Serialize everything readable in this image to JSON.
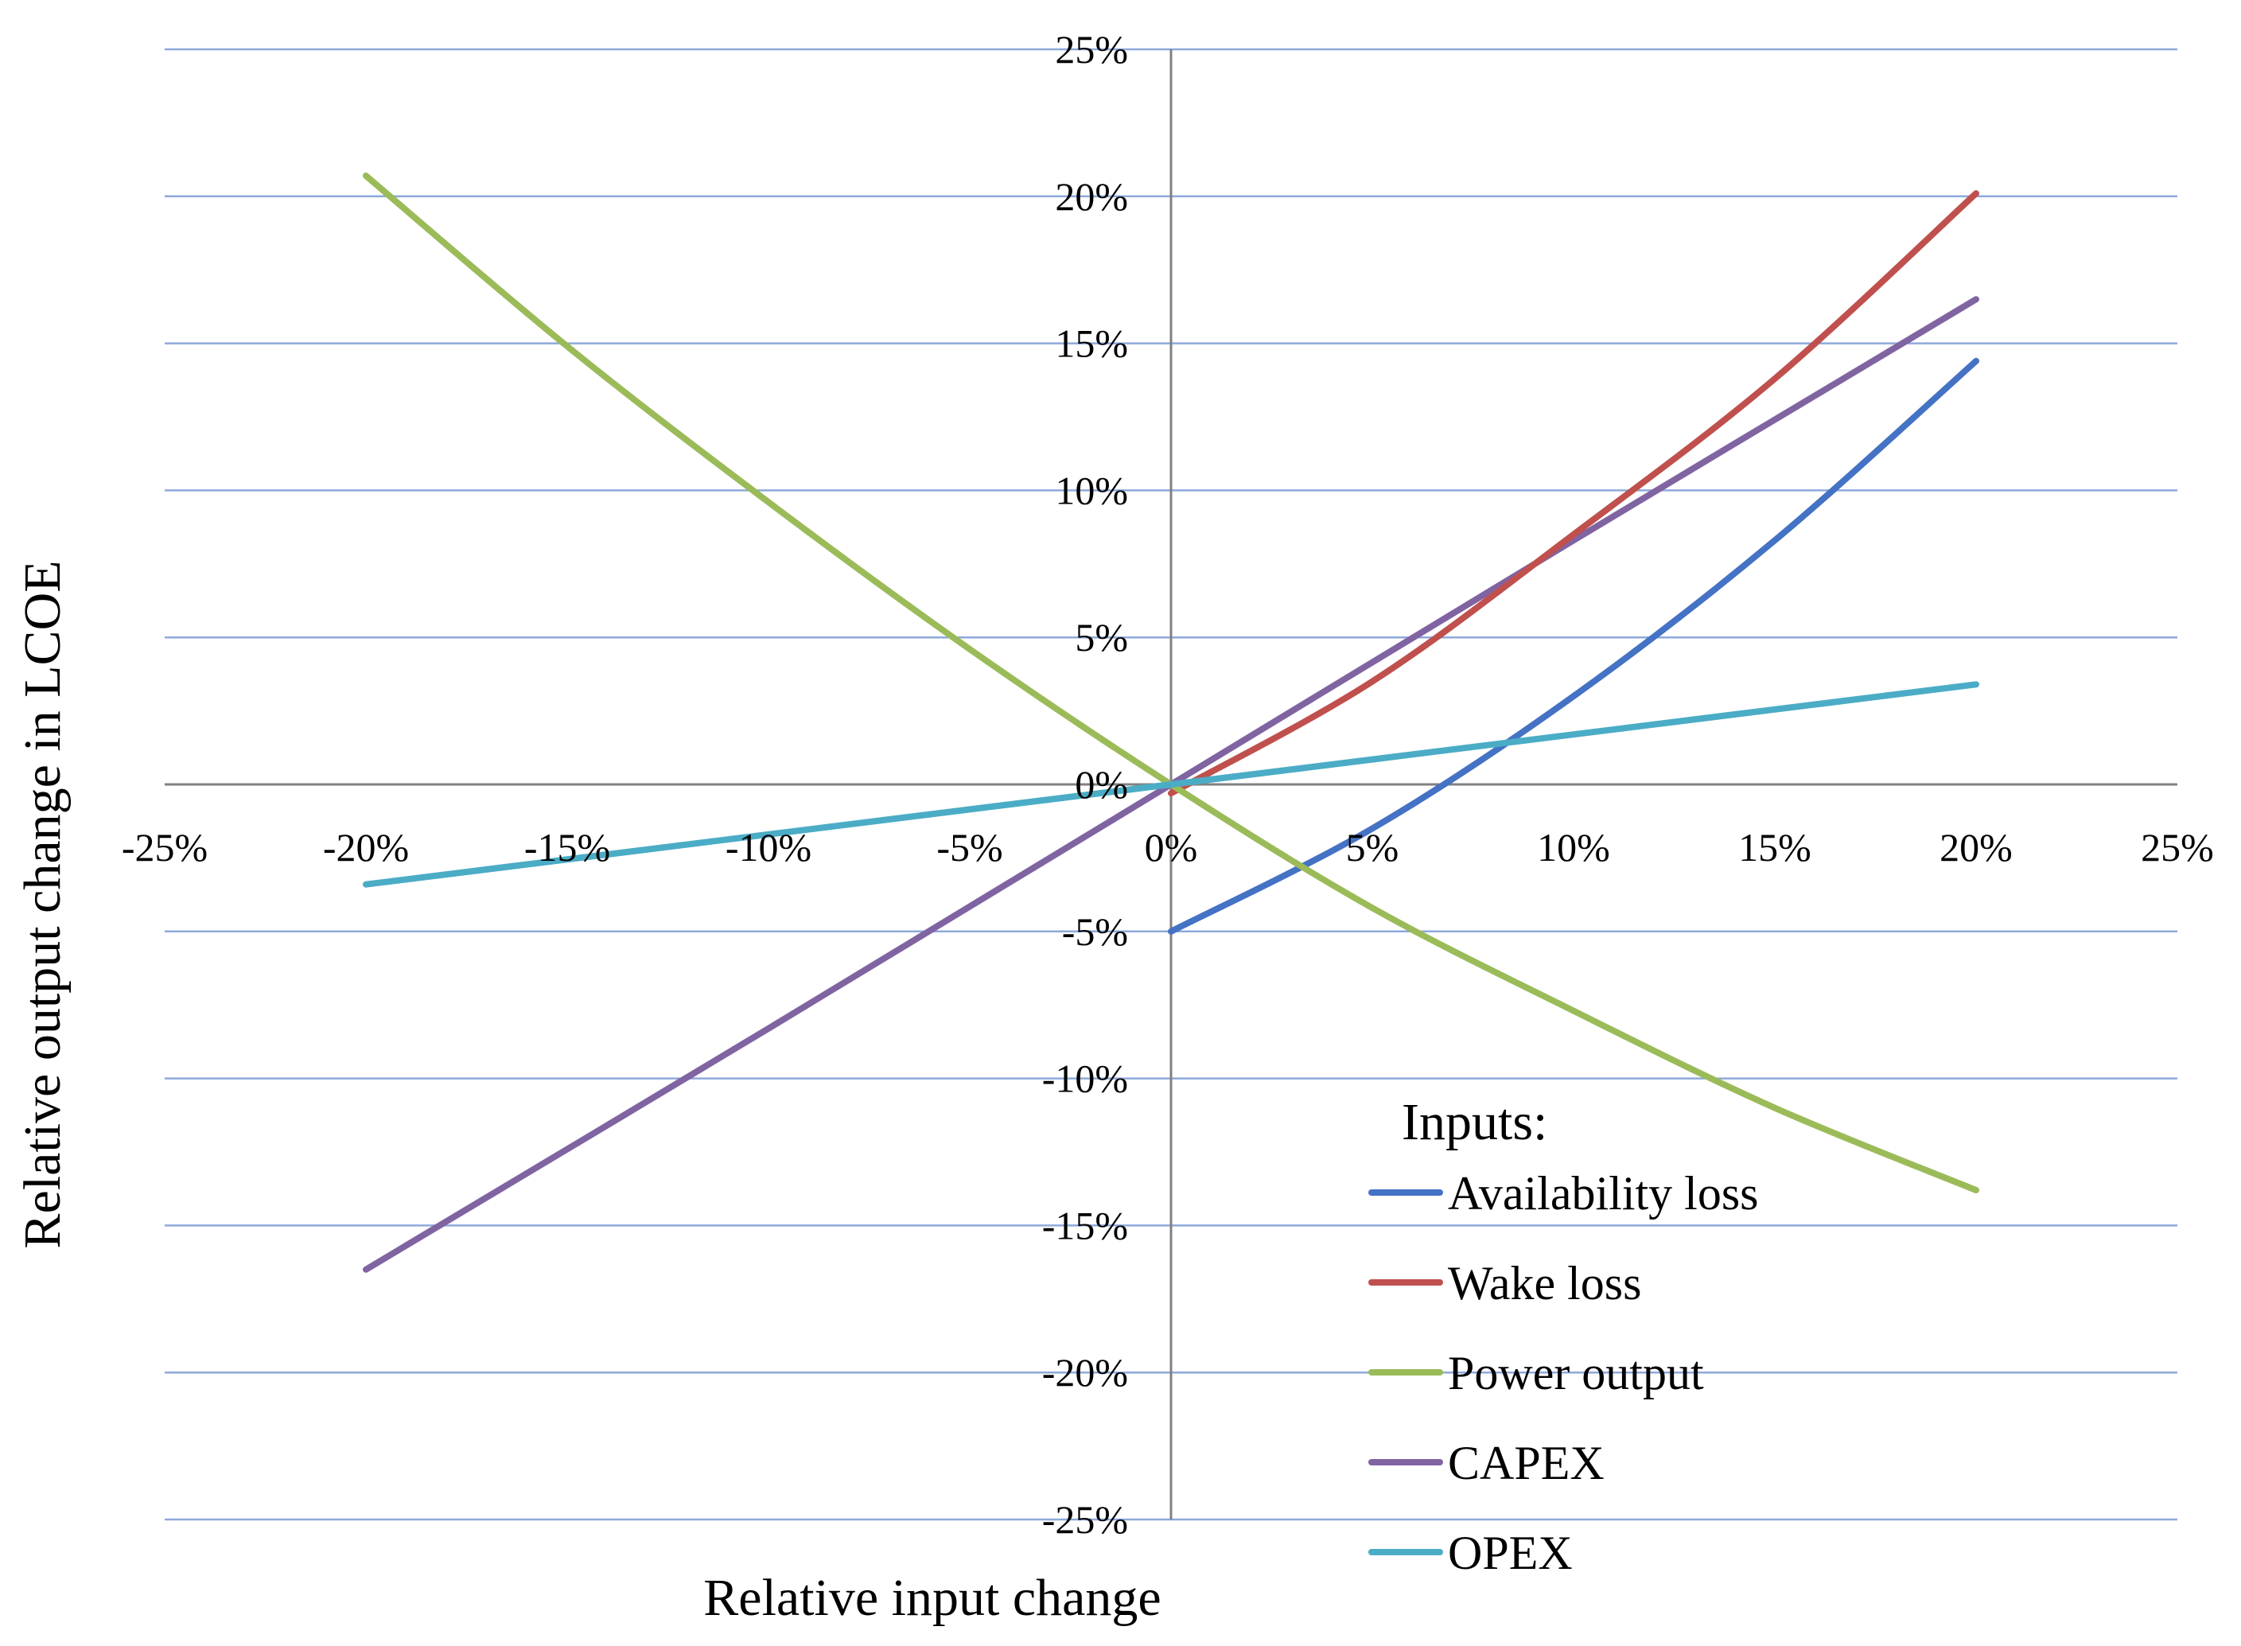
{
  "chart_data": {
    "type": "line",
    "title": "",
    "xlabel": "Relative input change",
    "ylabel": "Relative output change in LCOE",
    "xlim": [
      -25,
      25
    ],
    "ylim": [
      -25,
      25
    ],
    "x_ticks": [
      -25,
      -20,
      -15,
      -10,
      -5,
      0,
      5,
      10,
      15,
      20,
      25
    ],
    "y_ticks": [
      25,
      20,
      15,
      10,
      5,
      0,
      -5,
      -10,
      -15,
      -20,
      -25
    ],
    "x_tick_labels": [
      "-25%",
      "-20%",
      "-15%",
      "-10%",
      "-5%",
      "0%",
      "5%",
      "10%",
      "15%",
      "20%",
      "25%"
    ],
    "y_tick_labels": [
      "25%",
      "20%",
      "15%",
      "10%",
      "5%",
      "0%",
      "-5%",
      "-10%",
      "-15%",
      "-20%",
      "-25%"
    ],
    "grid": "horizontal",
    "legend": {
      "title": "Inputs:",
      "position": "bottom-right"
    },
    "series": [
      {
        "name": "Availability loss",
        "color": "#4472C4",
        "points": [
          [
            0,
            -5.0
          ],
          [
            5,
            -1.5
          ],
          [
            10,
            3.0
          ],
          [
            15,
            8.3
          ],
          [
            20,
            14.4
          ]
        ]
      },
      {
        "name": "Wake loss",
        "color": "#C0504D",
        "points": [
          [
            0,
            -0.3
          ],
          [
            5,
            3.5
          ],
          [
            10,
            8.5
          ],
          [
            15,
            13.8
          ],
          [
            20,
            20.1
          ]
        ]
      },
      {
        "name": "Power output",
        "color": "#9BBB59",
        "points": [
          [
            -20,
            20.7
          ],
          [
            -15,
            14.9
          ],
          [
            -10,
            9.6
          ],
          [
            -5,
            4.6
          ],
          [
            0,
            0
          ],
          [
            5,
            -4.2
          ],
          [
            10,
            -7.7
          ],
          [
            15,
            -11.0
          ],
          [
            20,
            -13.8
          ]
        ]
      },
      {
        "name": "CAPEX",
        "color": "#8064A2",
        "points": [
          [
            -20,
            -16.5
          ],
          [
            -10,
            -8.3
          ],
          [
            0,
            0
          ],
          [
            10,
            8.3
          ],
          [
            20,
            16.5
          ]
        ]
      },
      {
        "name": "OPEX",
        "color": "#4BACC6",
        "points": [
          [
            -20,
            -3.4
          ],
          [
            -10,
            -1.7
          ],
          [
            0,
            0
          ],
          [
            10,
            1.7
          ],
          [
            20,
            3.4
          ]
        ]
      }
    ]
  }
}
